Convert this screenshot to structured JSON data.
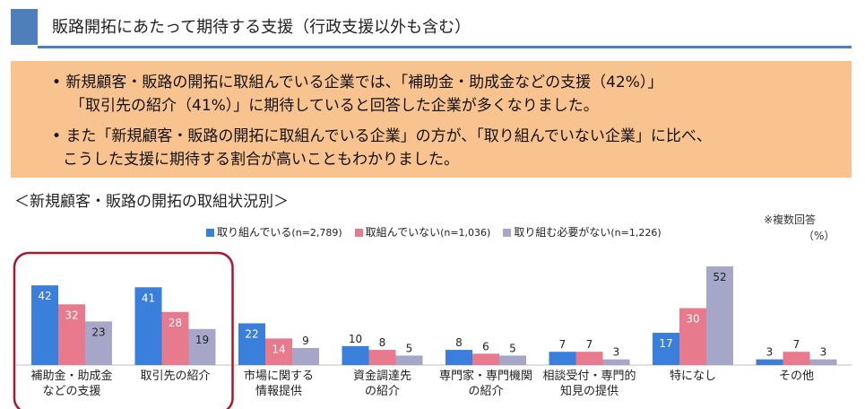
{
  "header": {
    "title": "販路開拓にあたって期待する支援（行政支援以外も含む）"
  },
  "summary": {
    "bullet1_line1": "• 新規顧客・販路の開拓に取組んでいる企業では、「補助金・助成金などの支援（42%）」",
    "bullet1_line2": "「取引先の紹介（41%）」に期待していると回答した企業が多くなりました。",
    "bullet2_line1": "• また「新規顧客・販路の開拓に取組んでいる企業」の方が、「取り組んでいない企業」に比べ、",
    "bullet2_line2": "こうした支援に期待する割合が高いこともわかりました。"
  },
  "chart_subtitle": "＜新規顧客・販路の開拓の取組状況別＞",
  "note": {
    "multiple": "※複数回答",
    "unit": "（%）"
  },
  "colors": {
    "accent": "#4f7fba",
    "highlight": "#a6192e",
    "summary_bg": "#f9c38f"
  },
  "chart_data": {
    "type": "bar",
    "categories": [
      [
        "補助金・助成金",
        "などの支援"
      ],
      [
        "取引先の紹介"
      ],
      [
        "市場に関する",
        "情報提供"
      ],
      [
        "資金調達先",
        "の紹介"
      ],
      [
        "専門家・専門機関",
        "の紹介"
      ],
      [
        "相談受付・専門的",
        "知見の提供"
      ],
      [
        "特になし"
      ],
      [
        "その他"
      ]
    ],
    "series": [
      {
        "name": "取り組んでいる",
        "n_label": "(n=2,789)",
        "color": "#3a7fdc",
        "values": [
          42,
          41,
          22,
          10,
          8,
          7,
          17,
          3
        ]
      },
      {
        "name": "取組んでいない",
        "n_label": "(n=1,036)",
        "color": "#e77a8c",
        "values": [
          32,
          28,
          14,
          8,
          6,
          7,
          30,
          7
        ]
      },
      {
        "name": "取り組む必要がない",
        "n_label": "(n=1,226)",
        "color": "#a6a6c8",
        "values": [
          23,
          19,
          9,
          5,
          5,
          3,
          52,
          3
        ]
      }
    ],
    "ylim": [
      0,
      52
    ],
    "highlighted_categories": [
      0,
      1
    ]
  }
}
